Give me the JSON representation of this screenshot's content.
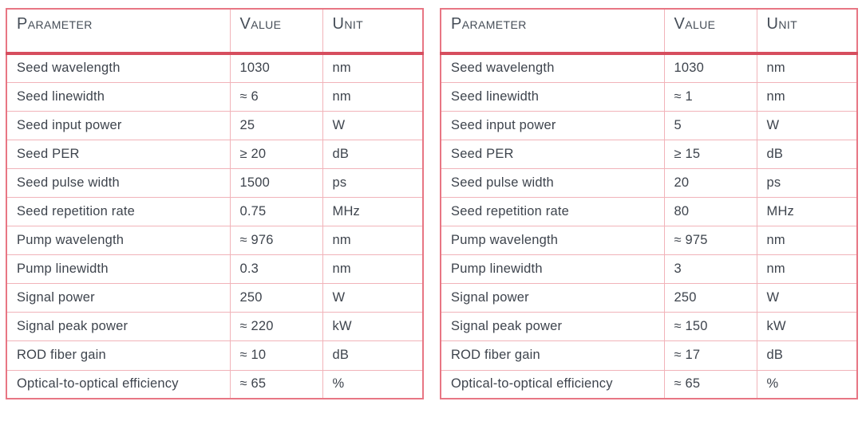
{
  "colors": {
    "outer_border": "#e87684",
    "inner_border": "#f1b3b9",
    "header_rule": "#d64d5e",
    "text": "#3e444d",
    "background": "#ffffff"
  },
  "columns": [
    "Parameter",
    "Value",
    "Unit"
  ],
  "tables": [
    {
      "id": "left-spec-table",
      "rows": [
        {
          "parameter": "Seed wavelength",
          "value": "1030",
          "unit": "nm"
        },
        {
          "parameter": "Seed linewidth",
          "value": "≈ 6",
          "unit": "nm"
        },
        {
          "parameter": "Seed input power",
          "value": "25",
          "unit": "W"
        },
        {
          "parameter": "Seed PER",
          "value": "≥ 20",
          "unit": "dB"
        },
        {
          "parameter": "Seed pulse width",
          "value": "1500",
          "unit": "ps"
        },
        {
          "parameter": "Seed repetition rate",
          "value": "0.75",
          "unit": "MHz"
        },
        {
          "parameter": "Pump wavelength",
          "value": "≈ 976",
          "unit": "nm"
        },
        {
          "parameter": "Pump linewidth",
          "value": "0.3",
          "unit": "nm"
        },
        {
          "parameter": "Signal power",
          "value": "250",
          "unit": "W"
        },
        {
          "parameter": "Signal peak power",
          "value": "≈ 220",
          "unit": "kW"
        },
        {
          "parameter": "ROD fiber gain",
          "value": "≈ 10",
          "unit": "dB"
        },
        {
          "parameter": "Optical-to-optical efficiency",
          "value": "≈ 65",
          "unit": "%"
        }
      ]
    },
    {
      "id": "right-spec-table",
      "rows": [
        {
          "parameter": "Seed wavelength",
          "value": "1030",
          "unit": "nm"
        },
        {
          "parameter": "Seed linewidth",
          "value": "≈ 1",
          "unit": "nm"
        },
        {
          "parameter": "Seed input power",
          "value": "5",
          "unit": "W"
        },
        {
          "parameter": "Seed PER",
          "value": "≥ 15",
          "unit": "dB"
        },
        {
          "parameter": "Seed pulse width",
          "value": "20",
          "unit": "ps"
        },
        {
          "parameter": "Seed repetition rate",
          "value": "80",
          "unit": "MHz"
        },
        {
          "parameter": "Pump wavelength",
          "value": "≈ 975",
          "unit": "nm"
        },
        {
          "parameter": "Pump linewidth",
          "value": "3",
          "unit": "nm"
        },
        {
          "parameter": "Signal power",
          "value": "250",
          "unit": "W"
        },
        {
          "parameter": "Signal peak power",
          "value": "≈ 150",
          "unit": "kW"
        },
        {
          "parameter": "ROD fiber gain",
          "value": "≈ 17",
          "unit": "dB"
        },
        {
          "parameter": "Optical-to-optical efficiency",
          "value": "≈ 65",
          "unit": "%"
        }
      ]
    }
  ]
}
